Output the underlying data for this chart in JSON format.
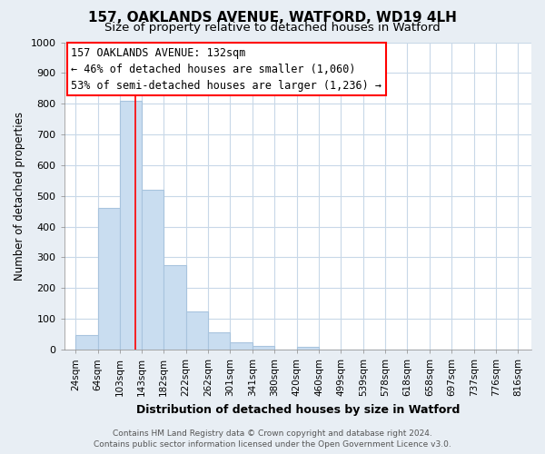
{
  "title": "157, OAKLANDS AVENUE, WATFORD, WD19 4LH",
  "subtitle": "Size of property relative to detached houses in Watford",
  "xlabel": "Distribution of detached houses by size in Watford",
  "ylabel": "Number of detached properties",
  "bar_left_edges": [
    24,
    64,
    103,
    143,
    182,
    222,
    262,
    301,
    341,
    380,
    420,
    460,
    499,
    539,
    578,
    618,
    658,
    697,
    737,
    776
  ],
  "bar_widths": [
    40,
    39,
    40,
    39,
    40,
    40,
    39,
    40,
    39,
    40,
    40,
    39,
    40,
    39,
    40,
    40,
    39,
    40,
    39,
    40
  ],
  "bar_heights": [
    47,
    460,
    810,
    520,
    275,
    125,
    57,
    25,
    13,
    0,
    8,
    0,
    0,
    0,
    0,
    0,
    0,
    0,
    0,
    0
  ],
  "bar_color": "#c9ddf0",
  "bar_edgecolor": "#a8c4de",
  "x_tick_labels": [
    "24sqm",
    "64sqm",
    "103sqm",
    "143sqm",
    "182sqm",
    "222sqm",
    "262sqm",
    "301sqm",
    "341sqm",
    "380sqm",
    "420sqm",
    "460sqm",
    "499sqm",
    "539sqm",
    "578sqm",
    "618sqm",
    "658sqm",
    "697sqm",
    "737sqm",
    "776sqm",
    "816sqm"
  ],
  "x_tick_positions": [
    24,
    64,
    103,
    143,
    182,
    222,
    262,
    301,
    341,
    380,
    420,
    460,
    499,
    539,
    578,
    618,
    658,
    697,
    737,
    776,
    816
  ],
  "ylim": [
    0,
    1000
  ],
  "xlim": [
    4,
    840
  ],
  "red_line_x": 132,
  "annotation_title": "157 OAKLANDS AVENUE: 132sqm",
  "annotation_line1": "← 46% of detached houses are smaller (1,060)",
  "annotation_line2": "53% of semi-detached houses are larger (1,236) →",
  "footer_line1": "Contains HM Land Registry data © Crown copyright and database right 2024.",
  "footer_line2": "Contains public sector information licensed under the Open Government Licence v3.0.",
  "figure_bg_color": "#e8eef4",
  "plot_bg_color": "#ffffff",
  "grid_color": "#c8d8e8",
  "title_fontsize": 11,
  "subtitle_fontsize": 9.5,
  "ylabel_fontsize": 8.5,
  "xlabel_fontsize": 9,
  "tick_fontsize": 7.5,
  "ytick_fontsize": 8,
  "footer_fontsize": 6.5,
  "annotation_fontsize": 8.5
}
